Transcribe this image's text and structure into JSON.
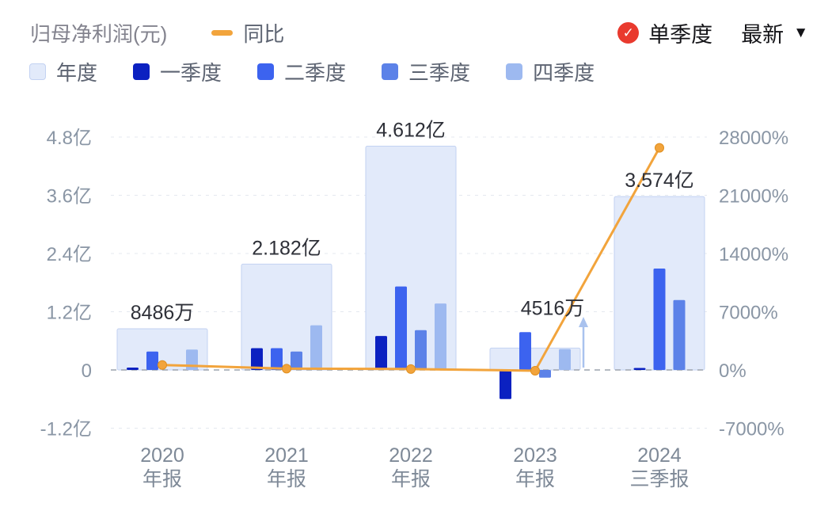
{
  "header": {
    "title": "归母净利润(元)",
    "yoy_label": "同比",
    "single_quarter_label": "单季度",
    "latest_label": "最新"
  },
  "legend": {
    "items": [
      {
        "id": "annual",
        "label": "年度"
      },
      {
        "id": "q1",
        "label": "一季度"
      },
      {
        "id": "q2",
        "label": "二季度"
      },
      {
        "id": "q3",
        "label": "三季度"
      },
      {
        "id": "q4",
        "label": "四季度"
      }
    ]
  },
  "colors": {
    "annual_fill": "#e2eafa",
    "annual_border": "#c3d2f2",
    "q1": "#0b21c1",
    "q2": "#3c63ef",
    "q3": "#5c82e8",
    "q4": "#9db9f0",
    "yoy_line": "#f2a43c",
    "check_red": "#e93a2e",
    "grid": "#e4e8ef",
    "zero_line": "#9ca3ad",
    "axis_text": "#8a96a5",
    "label_text": "#2e3038",
    "x_text": "#7e8997",
    "arrow": "#a9c2ee"
  },
  "chart_data": {
    "type": "bar+line",
    "title": "归母净利润(元)",
    "legend_position": "top",
    "grid": "dashed-horizontal",
    "categories": [
      {
        "line1": "2020",
        "line2": "年报"
      },
      {
        "line1": "2021",
        "line2": "年报"
      },
      {
        "line1": "2022",
        "line2": "年报"
      },
      {
        "line1": "2023",
        "line2": "年报"
      },
      {
        "line1": "2024",
        "line2": "三季报"
      }
    ],
    "annual_series": {
      "name": "年度",
      "labels": [
        "8486万",
        "2.182亿",
        "4.612亿",
        "4516万",
        "3.574亿"
      ],
      "values_yi": [
        0.8486,
        2.182,
        4.612,
        0.4516,
        3.574
      ]
    },
    "quarter_series": [
      {
        "name": "一季度",
        "values_yi": [
          0.05,
          0.45,
          0.7,
          -0.6,
          0.04
        ]
      },
      {
        "name": "二季度",
        "values_yi": [
          0.38,
          0.45,
          1.72,
          0.78,
          2.09
        ]
      },
      {
        "name": "三季度",
        "values_yi": [
          null,
          0.38,
          0.82,
          -0.16,
          1.44
        ]
      },
      {
        "name": "四季度",
        "values_yi": [
          0.42,
          0.92,
          1.37,
          0.43,
          null
        ]
      }
    ],
    "yoy_series": {
      "name": "同比",
      "unit": "%",
      "values_pct": [
        600,
        160,
        110,
        -90,
        26700
      ]
    },
    "left_axis": {
      "unit": "亿",
      "ticks": [
        "4.8亿",
        "3.6亿",
        "2.4亿",
        "1.2亿",
        "0",
        "-1.2亿"
      ],
      "values_yi": [
        4.8,
        3.6,
        2.4,
        1.2,
        0,
        -1.2
      ]
    },
    "right_axis": {
      "unit": "%",
      "ticks": [
        "28000%",
        "21000%",
        "14000%",
        "7000%",
        "0%",
        "-7000%"
      ],
      "values_pct": [
        28000,
        21000,
        14000,
        7000,
        0,
        -7000
      ]
    },
    "annotations": [
      {
        "category_index": 3,
        "type": "up-arrow"
      }
    ]
  }
}
